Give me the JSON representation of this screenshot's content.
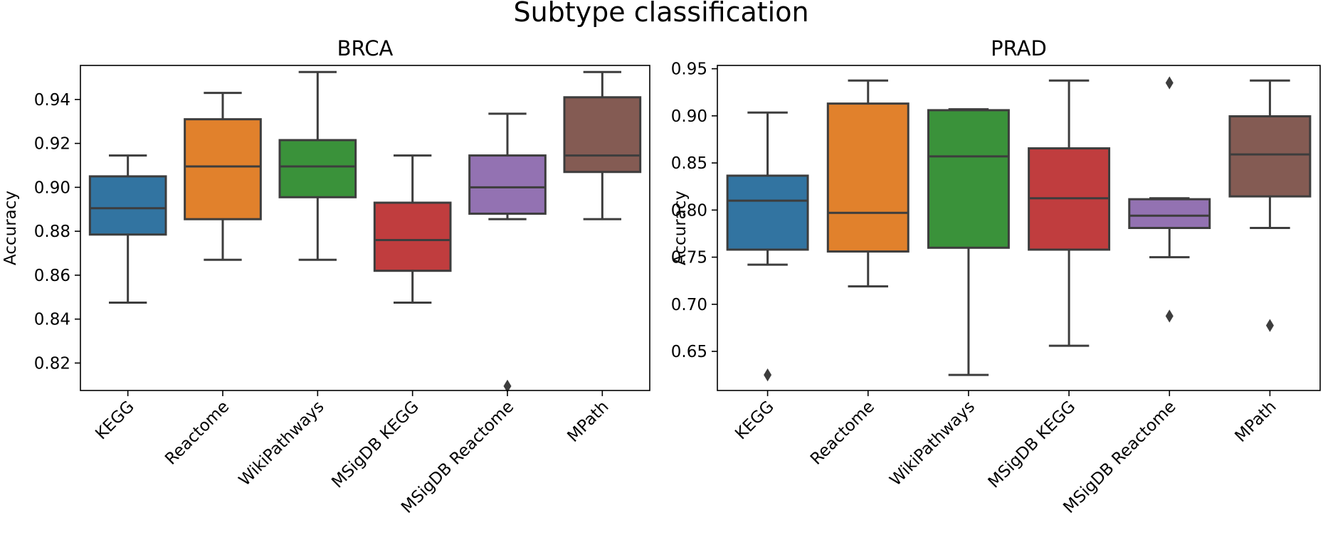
{
  "chart_data": {
    "suptitle": "Subtype classification",
    "categories": [
      "KEGG",
      "Reactome",
      "WikiPathways",
      "MSigDB KEGG",
      "MSigDB Reactome",
      "MPath"
    ],
    "colors": [
      "#3274a1",
      "#e1812c",
      "#3a923a",
      "#c03d3e",
      "#9372b2",
      "#845b53"
    ],
    "panels": [
      {
        "type": "box",
        "title": "BRCA",
        "ylabel": "Accuracy",
        "ylim": [
          0.8075,
          0.9555
        ],
        "yticks": [
          0.82,
          0.84,
          0.86,
          0.88,
          0.9,
          0.92,
          0.94
        ],
        "ytick_labels": [
          "0.82",
          "0.84",
          "0.86",
          "0.88",
          "0.90",
          "0.92",
          "0.94"
        ],
        "boxes": [
          {
            "name": "KEGG",
            "whislo": 0.8475,
            "q1": 0.8785,
            "median": 0.8905,
            "q3": 0.905,
            "whishi": 0.9145,
            "fliers": []
          },
          {
            "name": "Reactome",
            "whislo": 0.867,
            "q1": 0.8855,
            "median": 0.9095,
            "q3": 0.931,
            "whishi": 0.943,
            "fliers": []
          },
          {
            "name": "WikiPathways",
            "whislo": 0.867,
            "q1": 0.8955,
            "median": 0.9095,
            "q3": 0.9215,
            "whishi": 0.9525,
            "fliers": []
          },
          {
            "name": "MSigDB KEGG",
            "whislo": 0.8475,
            "q1": 0.862,
            "median": 0.876,
            "q3": 0.893,
            "whishi": 0.9145,
            "fliers": []
          },
          {
            "name": "MSigDB Reactome",
            "whislo": 0.8855,
            "q1": 0.888,
            "median": 0.9,
            "q3": 0.9145,
            "whishi": 0.9335,
            "fliers": [
              0.8095
            ]
          },
          {
            "name": "MPath",
            "whislo": 0.8855,
            "q1": 0.907,
            "median": 0.9145,
            "q3": 0.941,
            "whishi": 0.9525,
            "fliers": []
          }
        ]
      },
      {
        "type": "box",
        "title": "PRAD",
        "ylabel": "Accuracy",
        "ylim": [
          0.6085,
          0.9535
        ],
        "yticks": [
          0.65,
          0.7,
          0.75,
          0.8,
          0.85,
          0.9,
          0.95
        ],
        "ytick_labels": [
          "0.65",
          "0.70",
          "0.75",
          "0.80",
          "0.85",
          "0.90",
          "0.95"
        ],
        "boxes": [
          {
            "name": "KEGG",
            "whislo": 0.742,
            "q1": 0.758,
            "median": 0.81,
            "q3": 0.8365,
            "whishi": 0.9035,
            "fliers": [
              0.625
            ]
          },
          {
            "name": "Reactome",
            "whislo": 0.719,
            "q1": 0.756,
            "median": 0.797,
            "q3": 0.913,
            "whishi": 0.9375,
            "fliers": []
          },
          {
            "name": "WikiPathways",
            "whislo": 0.625,
            "q1": 0.76,
            "median": 0.857,
            "q3": 0.906,
            "whishi": 0.907,
            "fliers": []
          },
          {
            "name": "MSigDB KEGG",
            "whislo": 0.656,
            "q1": 0.758,
            "median": 0.8125,
            "q3": 0.8655,
            "whishi": 0.9375,
            "fliers": []
          },
          {
            "name": "MSigDB Reactome",
            "whislo": 0.75,
            "q1": 0.781,
            "median": 0.794,
            "q3": 0.8115,
            "whishi": 0.8125,
            "fliers": [
              0.935,
              0.6875
            ]
          },
          {
            "name": "MPath",
            "whislo": 0.781,
            "q1": 0.8145,
            "median": 0.859,
            "q3": 0.8995,
            "whishi": 0.9375,
            "fliers": [
              0.6775
            ]
          }
        ]
      }
    ]
  }
}
